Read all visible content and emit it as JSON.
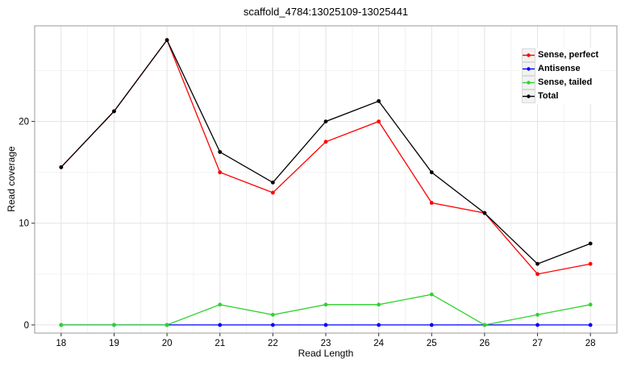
{
  "chart_data": {
    "type": "line",
    "title": "scaffold_4784:13025109-13025441",
    "xlabel": "Read Length",
    "ylabel": "Read coverage",
    "x": [
      18,
      19,
      20,
      21,
      22,
      23,
      24,
      25,
      26,
      27,
      28
    ],
    "series": [
      {
        "name": "Sense, perfect",
        "color": "#ff0000",
        "values": [
          15.5,
          21,
          28,
          15,
          13,
          18,
          20,
          12,
          11,
          5,
          6
        ]
      },
      {
        "name": "Antisense",
        "color": "#0000ff",
        "values": [
          0,
          0,
          0,
          0,
          0,
          0,
          0,
          0,
          0,
          0,
          0
        ]
      },
      {
        "name": "Sense, tailed",
        "color": "#2fd32f",
        "values": [
          0,
          0,
          0,
          2,
          1,
          2,
          2,
          3,
          0,
          1,
          2
        ]
      },
      {
        "name": "Total",
        "color": "#000000",
        "values": [
          15.5,
          21,
          28,
          17,
          14,
          20,
          22,
          15,
          11,
          6,
          8
        ]
      }
    ],
    "xticks": [
      18,
      19,
      20,
      21,
      22,
      23,
      24,
      25,
      26,
      27,
      28
    ],
    "yticks": [
      0,
      10,
      20
    ],
    "yticks_minor": [
      5,
      15,
      25
    ],
    "xlim": [
      17.5,
      28.5
    ],
    "ylim": [
      -0.8,
      29.4
    ],
    "grid": "on",
    "legend_position": "top-right",
    "colors": {
      "panel_background": "#ffffff",
      "panel_border": "#999999",
      "grid_major": "#e3e3e3",
      "grid_minor": "#f2f2f2",
      "tick_mark": "#333333",
      "tick_label": "#000000"
    }
  }
}
